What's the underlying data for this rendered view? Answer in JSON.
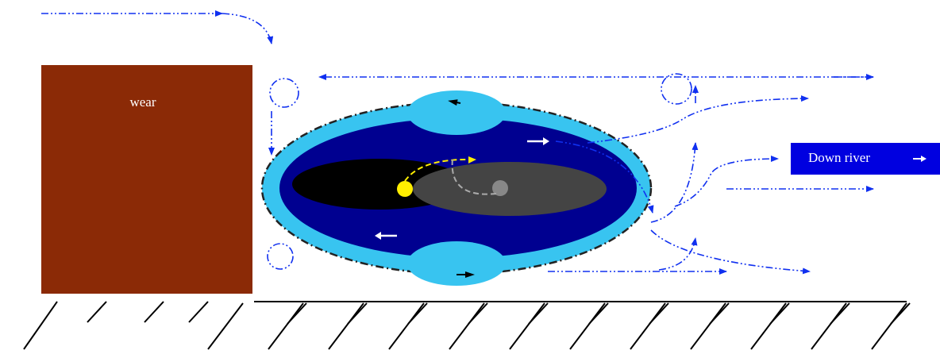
{
  "labels": {
    "wear": "wear",
    "down_river": "Down river"
  }
}
